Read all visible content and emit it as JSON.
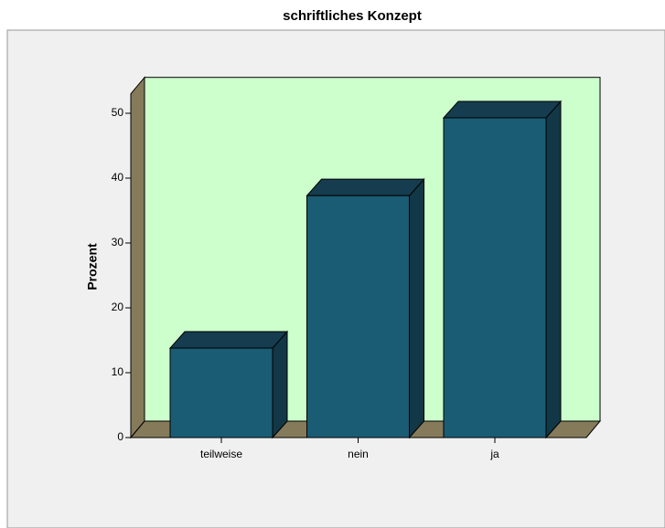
{
  "chart_data": {
    "type": "bar3d",
    "title": "schriftliches Konzept",
    "y_label": "Prozent",
    "categories": [
      "teilweise",
      "nein",
      "ja"
    ],
    "values": [
      13.8,
      37.3,
      49.3
    ],
    "color": "#1b5c75",
    "wall_color": "#ccffcc",
    "floor_color": "#857a5a",
    "ylim": [
      0,
      53
    ],
    "yticks": [
      0,
      10,
      20,
      30,
      40,
      50
    ]
  }
}
